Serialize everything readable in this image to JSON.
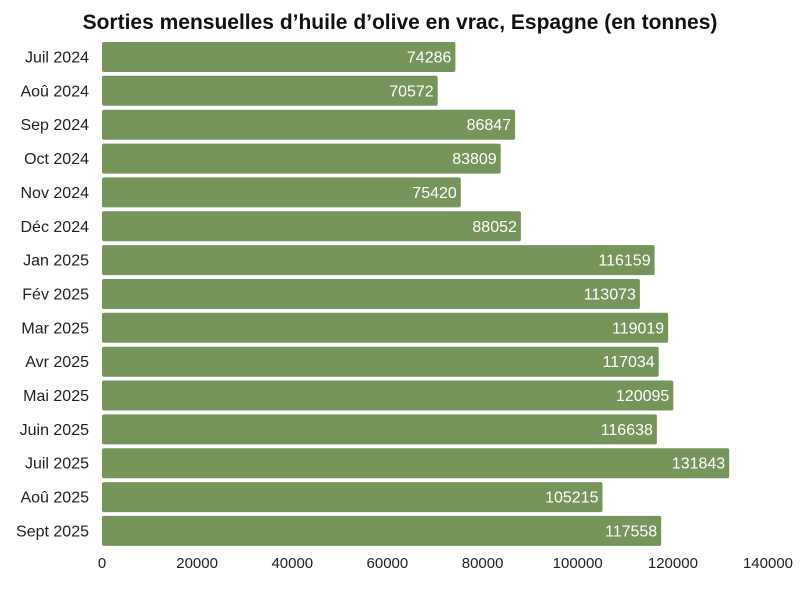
{
  "chart_data": {
    "type": "bar",
    "orientation": "horizontal",
    "title": "Sorties mensuelles d’huile d’olive en vrac, Espagne (en tonnes)",
    "categories": [
      "Juil 2024",
      "Aoû 2024",
      "Sep 2024",
      "Oct 2024",
      "Nov 2024",
      "Déc 2024",
      "Jan 2025",
      "Fév 2025",
      "Mar 2025",
      "Avr 2025",
      "Mai 2025",
      "Juin 2025",
      "Juil 2025",
      "Aoû 2025",
      "Sept 2025"
    ],
    "values": [
      74286,
      70572,
      86847,
      83809,
      75420,
      88052,
      116159,
      113073,
      119019,
      117034,
      120095,
      116638,
      131843,
      105215,
      117558
    ],
    "value_labels": [
      "74286",
      "70572",
      "86847",
      "83809",
      "75420",
      "88052",
      "116159",
      "113073",
      "119019",
      "117034",
      "120095",
      "116638",
      "131843",
      "105215",
      "117558"
    ],
    "xlim": [
      0,
      140000
    ],
    "xticks": [
      0,
      20000,
      40000,
      60000,
      80000,
      100000,
      120000,
      140000
    ],
    "xtick_labels": [
      "0",
      "20000",
      "40000",
      "60000",
      "80000",
      "100000",
      "120000",
      "140000"
    ],
    "xlabel": "",
    "ylabel": "",
    "grid": false,
    "legend": false,
    "bar_color": "#76955A",
    "value_label_color": "#ffffff"
  }
}
